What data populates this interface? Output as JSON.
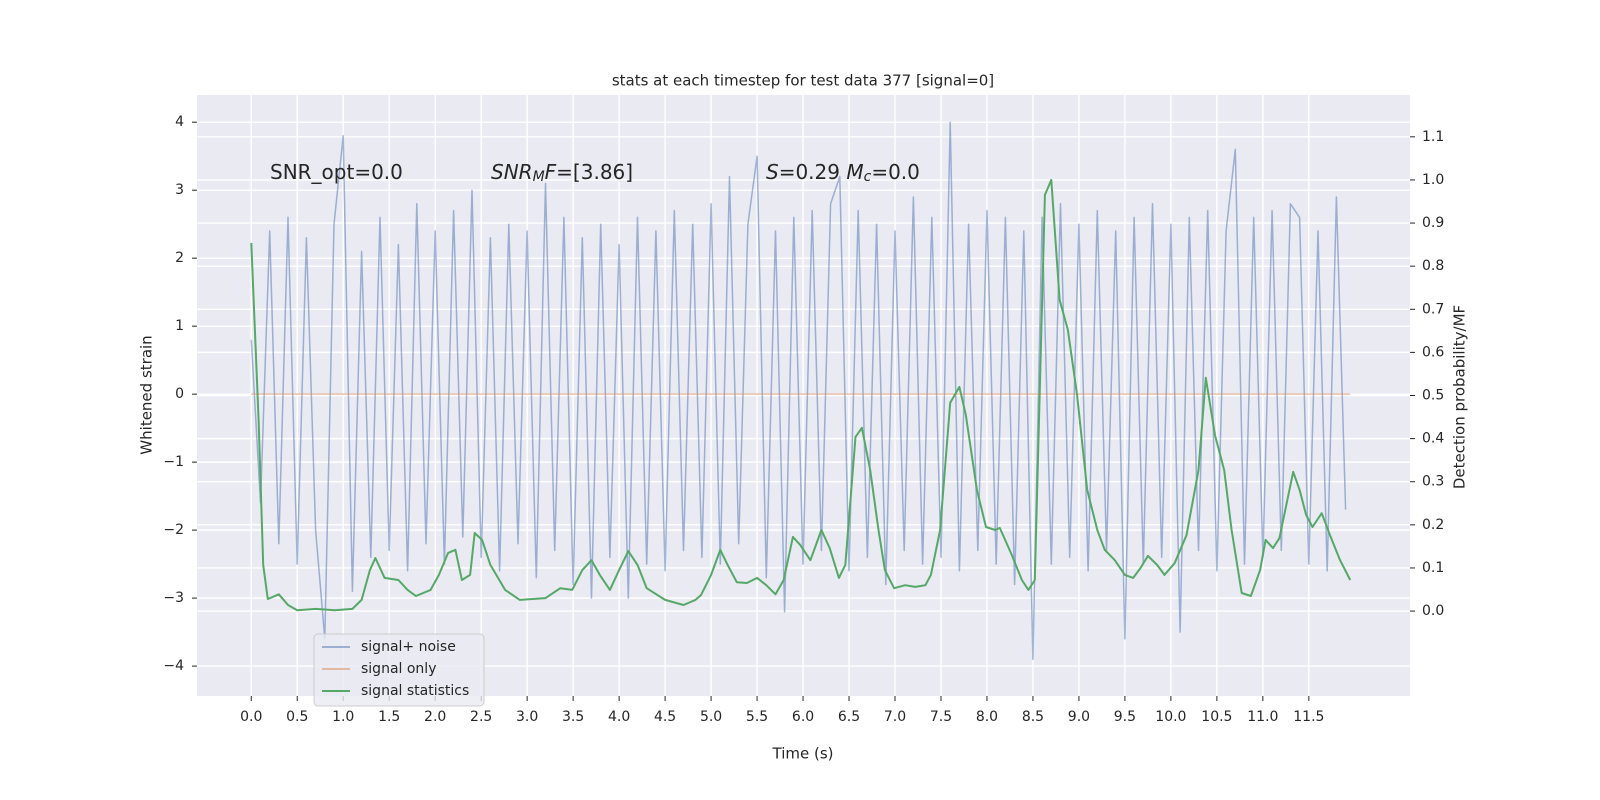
{
  "chart_data": {
    "type": "line",
    "title": "stats at each timestep for test data 377 [signal=0]",
    "x_label": "Time (s)",
    "y_label": "Whitened strain",
    "y2_label": "Detection probability/MF",
    "annotations": [
      [
        {
          "text": "SNR_opt=0.0"
        }
      ],
      [
        {
          "text": "SNR",
          "style": "italic"
        },
        {
          "text": "M",
          "style": "italic-sub"
        },
        {
          "text": "F",
          "style": "italic"
        },
        {
          "text": "=[3.86]"
        }
      ],
      [
        {
          "text": "S",
          "style": "italic"
        },
        {
          "text": "=0.29   "
        },
        {
          "text": "M",
          "style": "italic"
        },
        {
          "text": "c",
          "style": "italic-sub"
        },
        {
          "text": "=0.0"
        }
      ]
    ],
    "xlim": [
      -0.59,
      12.6
    ],
    "ylim": [
      -4.44,
      4.4
    ],
    "y2lim": [
      -0.197,
      1.197
    ],
    "xticks": [
      {
        "value": 0,
        "label": "0.0"
      },
      0.5,
      {
        "value": 1,
        "label": "1.0"
      },
      1.5,
      {
        "value": 2,
        "label": "2.0"
      },
      2.5,
      {
        "value": 3,
        "label": "3.0"
      },
      3.5,
      {
        "value": 4,
        "label": "4.0"
      },
      4.5,
      {
        "value": 5,
        "label": "5.0"
      },
      5.5,
      {
        "value": 6,
        "label": "6.0"
      },
      6.5,
      {
        "value": 7,
        "label": "7.0"
      },
      7.5,
      {
        "value": 8,
        "label": "8.0"
      },
      8.5,
      {
        "value": 9,
        "label": "9.0"
      },
      9.5,
      {
        "value": 10,
        "label": "10.0"
      },
      10.5,
      {
        "value": 11,
        "label": "11.0"
      },
      11.5
    ],
    "yticks": [
      {
        "value": -4,
        "label": "−4"
      },
      {
        "value": -3,
        "label": "−3"
      },
      {
        "value": -2,
        "label": "−2"
      },
      {
        "value": -1,
        "label": "−1"
      },
      0,
      1,
      2,
      3,
      4
    ],
    "y2ticks": [
      {
        "value": 0,
        "label": "0.0"
      },
      0.1,
      0.2,
      0.3,
      0.4,
      0.5,
      0.6,
      0.7,
      0.8,
      0.9,
      {
        "value": 1,
        "label": "1.0"
      },
      1.1
    ],
    "grid": true,
    "legend": "lower left",
    "series": [
      {
        "name": "signal+ noise",
        "color": "#4c72b0",
        "opacity": 0.5,
        "x": [
          0,
          0.1,
          0.2,
          0.3,
          0.4,
          0.5,
          0.6,
          0.7,
          0.8,
          0.9,
          1,
          1.1,
          1.2,
          1.3,
          1.4,
          1.5,
          1.6,
          1.7,
          1.8,
          1.9,
          2,
          2.1,
          2.2,
          2.3,
          2.4,
          2.5,
          2.6,
          2.7,
          2.8,
          2.9,
          3,
          3.1,
          3.2,
          3.3,
          3.4,
          3.5,
          3.6,
          3.7,
          3.8,
          3.9,
          4,
          4.1,
          4.2,
          4.3,
          4.4,
          4.5,
          4.6,
          4.7,
          4.8,
          4.9,
          5,
          5.1,
          5.2,
          5.3,
          5.4,
          5.5,
          5.6,
          5.7,
          5.8,
          5.9,
          6,
          6.1,
          6.2,
          6.3,
          6.4,
          6.5,
          6.6,
          6.7,
          6.8,
          6.9,
          7,
          7.1,
          7.2,
          7.3,
          7.4,
          7.5,
          7.6,
          7.7,
          7.8,
          7.9,
          8,
          8.1,
          8.2,
          8.3,
          8.4,
          8.5,
          8.6,
          8.7,
          8.8,
          8.9,
          9,
          9.1,
          9.2,
          9.3,
          9.4,
          9.5,
          9.6,
          9.7,
          9.8,
          9.9,
          10,
          10.1,
          10.2,
          10.3,
          10.4,
          10.5,
          10.6,
          10.7,
          10.8,
          10.9,
          11,
          11.1,
          11.2,
          11.3,
          11.4,
          11.5,
          11.6,
          11.7,
          11.8,
          11.9
        ],
        "values": [
          0.8,
          -1.6,
          2.4,
          -2.2,
          2.6,
          -2.5,
          2.3,
          -2.0,
          -3.6,
          2.5,
          3.8,
          -2.9,
          2.1,
          -2.4,
          2.6,
          -2.3,
          2.2,
          -2.6,
          2.8,
          -2.2,
          2.4,
          -2.5,
          2.7,
          -2.1,
          3.0,
          -2.4,
          2.3,
          -2.6,
          2.5,
          -2.2,
          2.4,
          -2.7,
          3.1,
          -2.3,
          2.6,
          -2.8,
          2.3,
          -3.0,
          2.5,
          -2.4,
          2.2,
          -3.0,
          2.6,
          -2.5,
          2.4,
          -2.6,
          2.7,
          -2.3,
          2.5,
          -2.4,
          2.8,
          -2.5,
          3.2,
          -2.2,
          2.5,
          3.5,
          -2.7,
          2.4,
          -3.2,
          2.6,
          -2.5,
          2.7,
          -2.3,
          2.8,
          3.2,
          -2.6,
          2.7,
          -2.4,
          2.5,
          -2.8,
          2.4,
          -2.3,
          2.9,
          -2.5,
          2.6,
          -2.4,
          4.0,
          -2.6,
          2.5,
          -2.3,
          2.7,
          -2.5,
          2.6,
          -2.8,
          2.4,
          -3.9,
          2.6,
          -2.5,
          2.8,
          -2.4,
          2.5,
          -2.6,
          2.7,
          -2.3,
          2.4,
          -3.6,
          2.6,
          -2.5,
          2.8,
          -2.4,
          2.5,
          -3.5,
          2.6,
          -2.3,
          2.7,
          -2.6,
          2.4,
          3.6,
          -2.5,
          2.6,
          -2.4,
          2.7,
          -2.3,
          2.8,
          2.6,
          -2.5,
          2.4,
          -2.6,
          2.9,
          -1.7
        ]
      },
      {
        "name": "signal only",
        "color": "#dd8452",
        "opacity": 0.5,
        "x": [
          0,
          11.95
        ],
        "values": [
          0,
          0
        ]
      },
      {
        "name": "signal statistics",
        "color": "#55a868",
        "opacity": 1,
        "axis": "y2",
        "x": [
          0,
          0.08,
          0.13,
          0.18,
          0.3,
          0.4,
          0.5,
          0.7,
          0.91,
          1.1,
          1.2,
          1.29,
          1.35,
          1.45,
          1.6,
          1.7,
          1.79,
          1.95,
          2.04,
          2.14,
          2.22,
          2.29,
          2.38,
          2.43,
          2.51,
          2.6,
          2.76,
          2.92,
          3.2,
          3.36,
          3.49,
          3.6,
          3.7,
          3.79,
          3.9,
          4,
          4.1,
          4.2,
          4.3,
          4.5,
          4.7,
          4.83,
          4.89,
          5,
          5.1,
          5.18,
          5.28,
          5.39,
          5.5,
          5.6,
          5.7,
          5.79,
          5.89,
          5.97,
          6.08,
          6.2,
          6.29,
          6.39,
          6.46,
          6.57,
          6.64,
          6.73,
          6.82,
          6.89,
          6.99,
          7.11,
          7.22,
          7.33,
          7.39,
          7.49,
          7.6,
          7.7,
          7.77,
          7.89,
          7.99,
          8.09,
          8.14,
          8.27,
          8.38,
          8.45,
          8.52,
          8.63,
          8.7,
          8.79,
          8.88,
          8.98,
          9.09,
          9.2,
          9.28,
          9.39,
          9.5,
          9.59,
          9.67,
          9.75,
          9.85,
          9.93,
          10.04,
          10.17,
          10.3,
          10.38,
          10.48,
          10.58,
          10.66,
          10.77,
          10.87,
          10.97,
          11.03,
          11.11,
          11.18,
          11.33,
          11.4,
          11.47,
          11.54,
          11.64,
          11.73,
          11.84,
          11.95
        ],
        "values": [
          0.854,
          0.443,
          0.107,
          0.028,
          0.039,
          0.014,
          0.002,
          0.005,
          0.002,
          0.005,
          0.026,
          0.095,
          0.123,
          0.077,
          0.072,
          0.049,
          0.035,
          0.049,
          0.084,
          0.135,
          0.142,
          0.072,
          0.084,
          0.181,
          0.165,
          0.107,
          0.049,
          0.026,
          0.03,
          0.053,
          0.049,
          0.095,
          0.118,
          0.084,
          0.049,
          0.095,
          0.139,
          0.107,
          0.053,
          0.026,
          0.014,
          0.026,
          0.037,
          0.084,
          0.142,
          0.107,
          0.067,
          0.065,
          0.077,
          0.06,
          0.039,
          0.072,
          0.172,
          0.153,
          0.118,
          0.188,
          0.146,
          0.077,
          0.107,
          0.404,
          0.425,
          0.327,
          0.188,
          0.095,
          0.053,
          0.06,
          0.056,
          0.06,
          0.084,
          0.188,
          0.483,
          0.52,
          0.455,
          0.281,
          0.195,
          0.188,
          0.193,
          0.13,
          0.072,
          0.049,
          0.072,
          0.965,
          1.0,
          0.722,
          0.652,
          0.501,
          0.281,
          0.188,
          0.142,
          0.118,
          0.084,
          0.077,
          0.1,
          0.128,
          0.107,
          0.084,
          0.111,
          0.176,
          0.327,
          0.541,
          0.408,
          0.327,
          0.188,
          0.042,
          0.035,
          0.095,
          0.165,
          0.146,
          0.169,
          0.323,
          0.281,
          0.223,
          0.195,
          0.227,
          0.176,
          0.118,
          0.072
        ]
      }
    ]
  }
}
